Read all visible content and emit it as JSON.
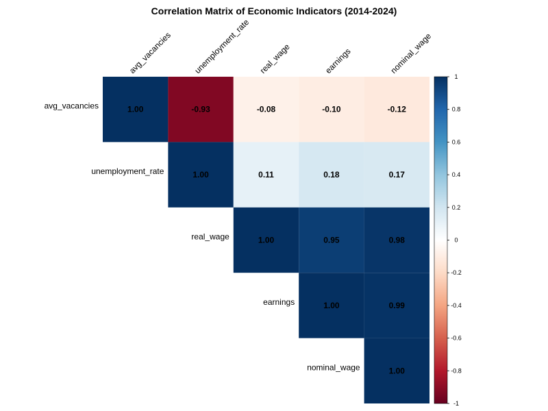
{
  "chart_data": {
    "type": "heatmap",
    "title": "Correlation Matrix of Economic Indicators (2014-2024)",
    "variables": [
      "avg_vacancies",
      "unemployment_rate",
      "real_wage",
      "earnings",
      "nominal_wage"
    ],
    "matrix": [
      [
        1.0,
        -0.93,
        -0.08,
        -0.1,
        -0.12
      ],
      [
        -0.93,
        1.0,
        0.11,
        0.18,
        0.17
      ],
      [
        -0.08,
        0.11,
        1.0,
        0.95,
        0.98
      ],
      [
        -0.1,
        0.18,
        0.95,
        1.0,
        0.99
      ],
      [
        -0.12,
        0.17,
        0.98,
        0.99,
        1.0
      ]
    ],
    "display": "upper",
    "colorbar": {
      "range": [
        -1,
        1
      ],
      "ticks": [
        1,
        0.8,
        0.6,
        0.4,
        0.2,
        0,
        -0.2,
        -0.4,
        -0.6,
        -0.8,
        -1
      ],
      "tick_labels": [
        "1",
        "0.8",
        "0.6",
        "0.4",
        "0.2",
        "0",
        "-0.2",
        "-0.4",
        "-0.6",
        "-0.8",
        "-1"
      ],
      "colors": [
        "#67001F",
        "#B2182B",
        "#D6604D",
        "#F4A582",
        "#FDDBC7",
        "#FFFFFF",
        "#D1E5F0",
        "#92C5DE",
        "#4393C3",
        "#2166AC",
        "#053061"
      ]
    },
    "grid": false
  }
}
